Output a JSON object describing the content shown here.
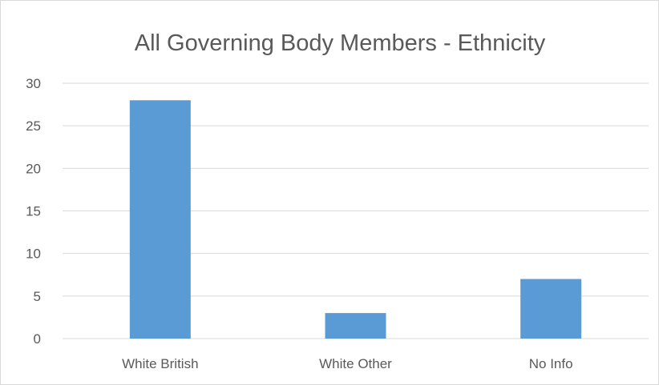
{
  "chart_data": {
    "type": "bar",
    "title": "All Governing Body Members - Ethnicity",
    "categories": [
      "White British",
      "White Other",
      "No Info"
    ],
    "values": [
      28,
      3,
      7
    ],
    "ylim": [
      0,
      30
    ],
    "yticks": [
      0,
      5,
      10,
      15,
      20,
      25,
      30
    ],
    "grid": true,
    "legend": "none",
    "bar_color": "#5b9bd5",
    "grid_color": "#d9d9d9",
    "text_color": "#595959"
  }
}
